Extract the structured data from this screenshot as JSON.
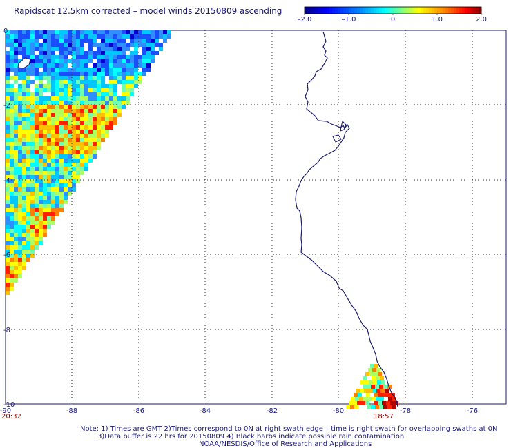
{
  "title": "Rapidscat 12.5km corrected – model winds 20150809 ascending",
  "colorbar": {
    "labels": [
      "–2.0",
      "–1.0",
      "0",
      "1.0",
      "2.0"
    ],
    "colors": [
      "#00008b",
      "#0000ff",
      "#0080ff",
      "#00ffff",
      "#80ff80",
      "#ffff00",
      "#ff8000",
      "#ff0000",
      "#8b0000"
    ]
  },
  "map": {
    "lon_ticks": [
      "-90",
      "-88",
      "-86",
      "-84",
      "-82",
      "-80",
      "-78",
      "-76"
    ],
    "lat_ticks": [
      "0",
      "-2",
      "-4",
      "-6",
      "-8",
      "-10"
    ],
    "lon_range": [
      -90,
      -75.5
    ],
    "lat_range": [
      -10,
      0
    ],
    "time_left": "20:32",
    "time_right": "18:57",
    "coastline_color": "#1a1a6a",
    "grid": "dotted"
  },
  "notes": {
    "line1": "Note: 1) Times are GMT 2)Times correspond to 0N at right swath edge – time is right swath for overlapping swaths at 0N",
    "line2": "3)Data buffer is 22 hrs for 20150809 4) Black barbs indicate possible rain contamination",
    "line3": "NOAA/NESDIS/Office of Research and Applications"
  }
}
